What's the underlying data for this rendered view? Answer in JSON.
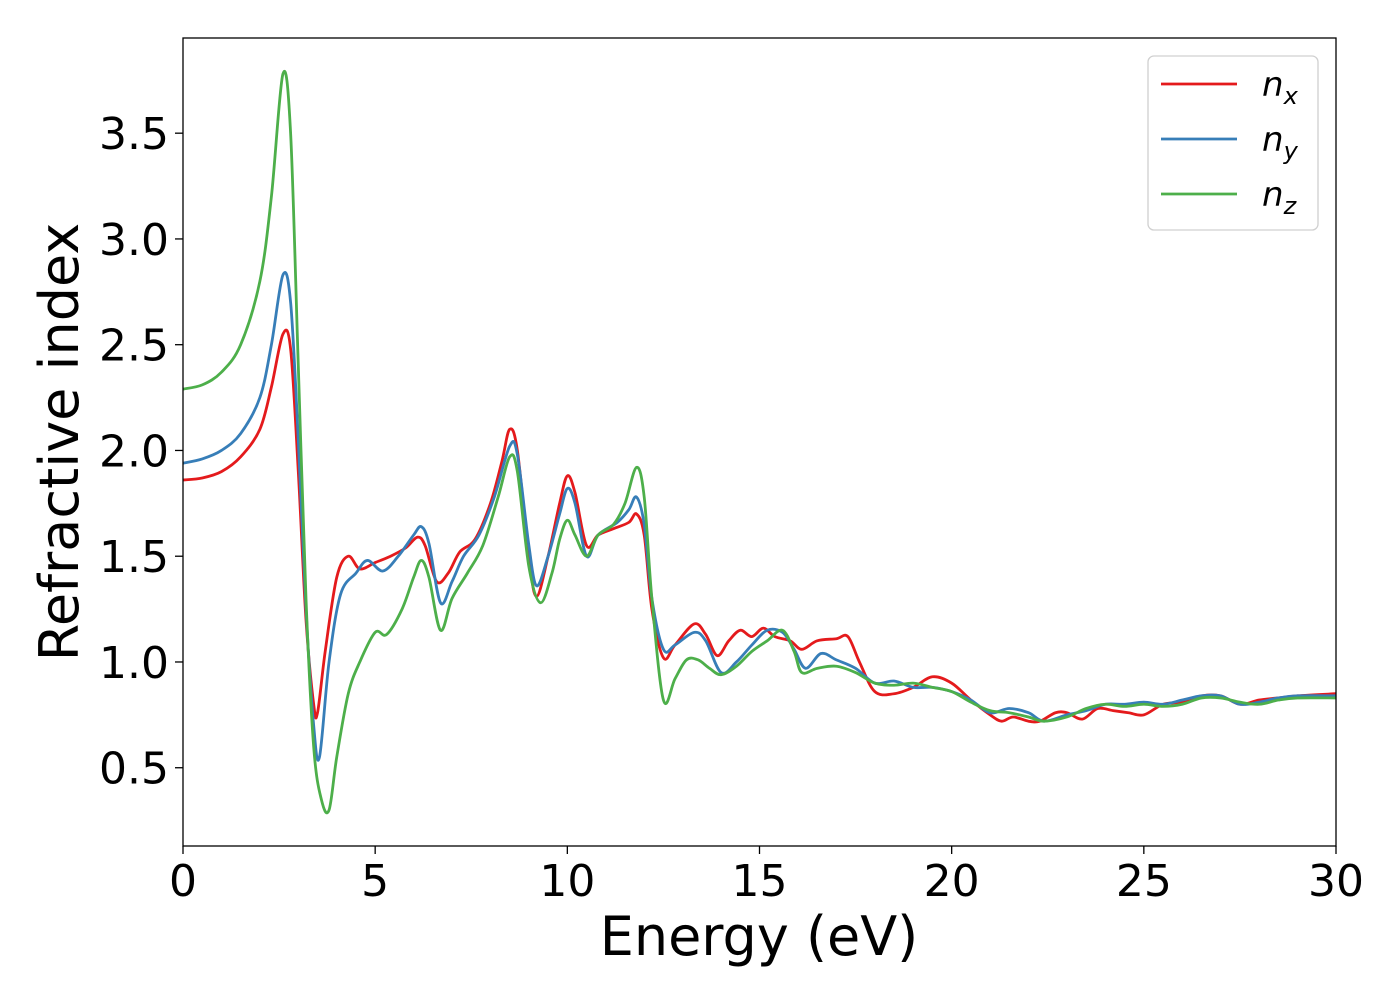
{
  "chart_data": {
    "type": "line",
    "title": "",
    "xlabel": "Energy (eV)",
    "ylabel": "Refractive index",
    "xlim": [
      0,
      30
    ],
    "ylim": [
      0.13,
      3.95
    ],
    "xticks": [
      0,
      5,
      10,
      15,
      20,
      25,
      30
    ],
    "xtick_labels": [
      "0",
      "5",
      "10",
      "15",
      "20",
      "25",
      "30"
    ],
    "yticks": [
      0.5,
      1.0,
      1.5,
      2.0,
      2.5,
      3.0,
      3.5
    ],
    "ytick_labels": [
      "0.5",
      "1.0",
      "1.5",
      "2.0",
      "2.5",
      "3.0",
      "3.5"
    ],
    "grid": false,
    "legend_position": "top-right",
    "series": [
      {
        "name": "n",
        "subscript": "x",
        "color": "#e41a1c",
        "points": [
          [
            0,
            1.86
          ],
          [
            0.5,
            1.87
          ],
          [
            1,
            1.9
          ],
          [
            1.5,
            1.97
          ],
          [
            2,
            2.1
          ],
          [
            2.3,
            2.3
          ],
          [
            2.6,
            2.55
          ],
          [
            2.8,
            2.48
          ],
          [
            3.0,
            1.9
          ],
          [
            3.2,
            1.2
          ],
          [
            3.4,
            0.8
          ],
          [
            3.5,
            0.76
          ],
          [
            3.7,
            1.05
          ],
          [
            4.0,
            1.4
          ],
          [
            4.3,
            1.5
          ],
          [
            4.6,
            1.44
          ],
          [
            5.0,
            1.47
          ],
          [
            5.4,
            1.5
          ],
          [
            5.8,
            1.54
          ],
          [
            6.1,
            1.59
          ],
          [
            6.3,
            1.55
          ],
          [
            6.6,
            1.38
          ],
          [
            6.9,
            1.42
          ],
          [
            7.2,
            1.52
          ],
          [
            7.6,
            1.58
          ],
          [
            8.0,
            1.75
          ],
          [
            8.3,
            1.95
          ],
          [
            8.5,
            2.1
          ],
          [
            8.7,
            2.0
          ],
          [
            9.0,
            1.5
          ],
          [
            9.2,
            1.31
          ],
          [
            9.5,
            1.5
          ],
          [
            9.8,
            1.75
          ],
          [
            10.0,
            1.88
          ],
          [
            10.2,
            1.8
          ],
          [
            10.5,
            1.55
          ],
          [
            10.8,
            1.6
          ],
          [
            11.2,
            1.63
          ],
          [
            11.6,
            1.66
          ],
          [
            11.8,
            1.7
          ],
          [
            12.0,
            1.6
          ],
          [
            12.2,
            1.25
          ],
          [
            12.5,
            1.02
          ],
          [
            12.8,
            1.08
          ],
          [
            13.3,
            1.18
          ],
          [
            13.6,
            1.13
          ],
          [
            13.9,
            1.03
          ],
          [
            14.2,
            1.1
          ],
          [
            14.5,
            1.15
          ],
          [
            14.8,
            1.12
          ],
          [
            15.1,
            1.16
          ],
          [
            15.4,
            1.12
          ],
          [
            15.8,
            1.1
          ],
          [
            16.1,
            1.06
          ],
          [
            16.5,
            1.1
          ],
          [
            17.0,
            1.11
          ],
          [
            17.3,
            1.12
          ],
          [
            17.6,
            1.0
          ],
          [
            18.0,
            0.86
          ],
          [
            18.5,
            0.85
          ],
          [
            19.0,
            0.88
          ],
          [
            19.5,
            0.93
          ],
          [
            20.0,
            0.9
          ],
          [
            20.5,
            0.82
          ],
          [
            21.0,
            0.75
          ],
          [
            21.3,
            0.72
          ],
          [
            21.6,
            0.74
          ],
          [
            22.0,
            0.72
          ],
          [
            22.3,
            0.72
          ],
          [
            22.7,
            0.76
          ],
          [
            23.0,
            0.76
          ],
          [
            23.4,
            0.73
          ],
          [
            23.8,
            0.78
          ],
          [
            24.2,
            0.77
          ],
          [
            24.6,
            0.76
          ],
          [
            25.0,
            0.75
          ],
          [
            25.5,
            0.8
          ],
          [
            26.0,
            0.81
          ],
          [
            26.5,
            0.84
          ],
          [
            27.0,
            0.84
          ],
          [
            27.5,
            0.8
          ],
          [
            28.0,
            0.82
          ],
          [
            28.5,
            0.83
          ],
          [
            29.0,
            0.84
          ],
          [
            30.0,
            0.85
          ]
        ]
      },
      {
        "name": "n",
        "subscript": "y",
        "color": "#377eb8",
        "points": [
          [
            0,
            1.94
          ],
          [
            0.5,
            1.96
          ],
          [
            1,
            2.0
          ],
          [
            1.5,
            2.08
          ],
          [
            2,
            2.25
          ],
          [
            2.3,
            2.5
          ],
          [
            2.6,
            2.83
          ],
          [
            2.8,
            2.7
          ],
          [
            3.0,
            2.05
          ],
          [
            3.2,
            1.25
          ],
          [
            3.4,
            0.7
          ],
          [
            3.55,
            0.55
          ],
          [
            3.8,
            1.0
          ],
          [
            4.1,
            1.32
          ],
          [
            4.5,
            1.42
          ],
          [
            4.8,
            1.48
          ],
          [
            5.2,
            1.43
          ],
          [
            5.6,
            1.5
          ],
          [
            6.0,
            1.6
          ],
          [
            6.2,
            1.64
          ],
          [
            6.4,
            1.56
          ],
          [
            6.7,
            1.28
          ],
          [
            7.0,
            1.38
          ],
          [
            7.3,
            1.5
          ],
          [
            7.7,
            1.6
          ],
          [
            8.1,
            1.78
          ],
          [
            8.5,
            2.02
          ],
          [
            8.7,
            1.98
          ],
          [
            9.0,
            1.55
          ],
          [
            9.2,
            1.36
          ],
          [
            9.5,
            1.5
          ],
          [
            9.8,
            1.7
          ],
          [
            10.0,
            1.82
          ],
          [
            10.2,
            1.75
          ],
          [
            10.5,
            1.5
          ],
          [
            10.8,
            1.6
          ],
          [
            11.3,
            1.66
          ],
          [
            11.6,
            1.72
          ],
          [
            11.8,
            1.78
          ],
          [
            12.0,
            1.65
          ],
          [
            12.2,
            1.3
          ],
          [
            12.5,
            1.06
          ],
          [
            12.8,
            1.08
          ],
          [
            13.3,
            1.14
          ],
          [
            13.6,
            1.1
          ],
          [
            14.0,
            0.95
          ],
          [
            14.4,
            1.0
          ],
          [
            14.8,
            1.08
          ],
          [
            15.2,
            1.15
          ],
          [
            15.6,
            1.14
          ],
          [
            15.9,
            1.06
          ],
          [
            16.2,
            0.97
          ],
          [
            16.6,
            1.04
          ],
          [
            17.0,
            1.01
          ],
          [
            17.5,
            0.97
          ],
          [
            18.0,
            0.9
          ],
          [
            18.5,
            0.91
          ],
          [
            19.0,
            0.88
          ],
          [
            19.5,
            0.88
          ],
          [
            20.0,
            0.86
          ],
          [
            20.5,
            0.82
          ],
          [
            21.0,
            0.76
          ],
          [
            21.5,
            0.78
          ],
          [
            22.0,
            0.76
          ],
          [
            22.4,
            0.72
          ],
          [
            23.0,
            0.75
          ],
          [
            23.5,
            0.77
          ],
          [
            24.0,
            0.8
          ],
          [
            24.5,
            0.8
          ],
          [
            25.0,
            0.81
          ],
          [
            25.5,
            0.8
          ],
          [
            26.0,
            0.82
          ],
          [
            26.5,
            0.84
          ],
          [
            27.0,
            0.84
          ],
          [
            27.5,
            0.8
          ],
          [
            28.0,
            0.81
          ],
          [
            28.5,
            0.83
          ],
          [
            29.0,
            0.84
          ],
          [
            30.0,
            0.84
          ]
        ]
      },
      {
        "name": "n",
        "subscript": "z",
        "color": "#4daf4a",
        "points": [
          [
            0,
            2.29
          ],
          [
            0.5,
            2.31
          ],
          [
            1,
            2.37
          ],
          [
            1.5,
            2.5
          ],
          [
            2,
            2.8
          ],
          [
            2.3,
            3.2
          ],
          [
            2.6,
            3.78
          ],
          [
            2.8,
            3.5
          ],
          [
            3.0,
            2.4
          ],
          [
            3.2,
            1.3
          ],
          [
            3.4,
            0.6
          ],
          [
            3.6,
            0.35
          ],
          [
            3.8,
            0.3
          ],
          [
            4.0,
            0.55
          ],
          [
            4.3,
            0.85
          ],
          [
            4.6,
            1.0
          ],
          [
            5.0,
            1.14
          ],
          [
            5.3,
            1.13
          ],
          [
            5.7,
            1.25
          ],
          [
            6.0,
            1.4
          ],
          [
            6.2,
            1.48
          ],
          [
            6.4,
            1.4
          ],
          [
            6.7,
            1.15
          ],
          [
            7.0,
            1.3
          ],
          [
            7.4,
            1.42
          ],
          [
            7.8,
            1.55
          ],
          [
            8.2,
            1.78
          ],
          [
            8.5,
            1.97
          ],
          [
            8.7,
            1.9
          ],
          [
            9.0,
            1.45
          ],
          [
            9.3,
            1.28
          ],
          [
            9.6,
            1.42
          ],
          [
            9.8,
            1.58
          ],
          [
            10.0,
            1.67
          ],
          [
            10.2,
            1.6
          ],
          [
            10.5,
            1.5
          ],
          [
            10.8,
            1.6
          ],
          [
            11.2,
            1.65
          ],
          [
            11.5,
            1.75
          ],
          [
            11.8,
            1.92
          ],
          [
            12.0,
            1.78
          ],
          [
            12.2,
            1.3
          ],
          [
            12.5,
            0.82
          ],
          [
            12.8,
            0.92
          ],
          [
            13.1,
            1.01
          ],
          [
            13.4,
            1.01
          ],
          [
            13.7,
            0.97
          ],
          [
            14.0,
            0.94
          ],
          [
            14.4,
            0.98
          ],
          [
            14.8,
            1.05
          ],
          [
            15.2,
            1.1
          ],
          [
            15.6,
            1.15
          ],
          [
            15.9,
            1.05
          ],
          [
            16.1,
            0.95
          ],
          [
            16.5,
            0.97
          ],
          [
            17.0,
            0.98
          ],
          [
            17.5,
            0.95
          ],
          [
            18.0,
            0.9
          ],
          [
            18.5,
            0.89
          ],
          [
            19.0,
            0.9
          ],
          [
            19.5,
            0.88
          ],
          [
            20.0,
            0.86
          ],
          [
            20.5,
            0.81
          ],
          [
            21.0,
            0.77
          ],
          [
            21.5,
            0.76
          ],
          [
            22.0,
            0.74
          ],
          [
            22.4,
            0.72
          ],
          [
            23.0,
            0.74
          ],
          [
            23.5,
            0.78
          ],
          [
            24.0,
            0.8
          ],
          [
            24.5,
            0.79
          ],
          [
            25.0,
            0.8
          ],
          [
            25.5,
            0.79
          ],
          [
            26.0,
            0.8
          ],
          [
            26.5,
            0.83
          ],
          [
            27.0,
            0.83
          ],
          [
            27.5,
            0.81
          ],
          [
            28.0,
            0.8
          ],
          [
            28.5,
            0.82
          ],
          [
            29.0,
            0.83
          ],
          [
            30.0,
            0.83
          ]
        ]
      }
    ]
  }
}
